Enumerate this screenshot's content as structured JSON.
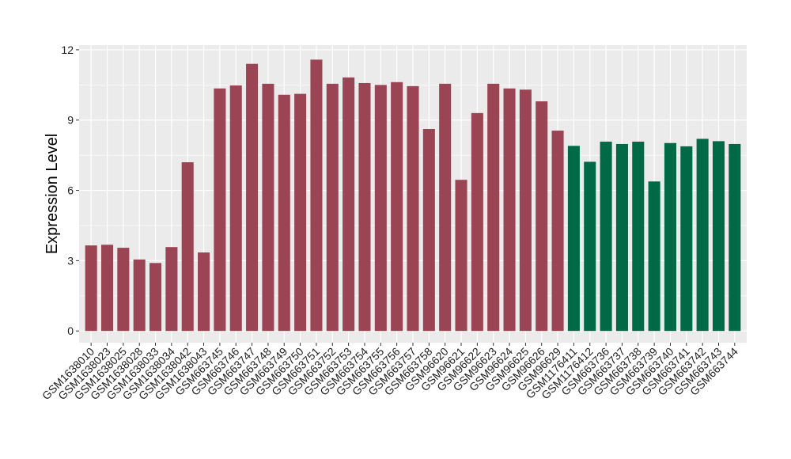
{
  "chart_data": {
    "type": "bar",
    "title": "",
    "xlabel": "",
    "ylabel": "Expression Level",
    "ylim": [
      -0.5,
      12.2
    ],
    "yticks": [
      0,
      3,
      6,
      9,
      12
    ],
    "grid": true,
    "legend": "none",
    "colors": {
      "group1": "#9b4453",
      "group2": "#006a46",
      "panel": "#ebebeb",
      "grid": "#ffffff"
    },
    "categories": [
      "GSM1638010",
      "GSM1638023",
      "GSM1638025",
      "GSM1638028",
      "GSM1638033",
      "GSM1638034",
      "GSM1638042",
      "GSM1638043",
      "GSM663745",
      "GSM663746",
      "GSM663747",
      "GSM663748",
      "GSM663749",
      "GSM663750",
      "GSM663751",
      "GSM663752",
      "GSM663753",
      "GSM663754",
      "GSM663755",
      "GSM663756",
      "GSM663757",
      "GSM663758",
      "GSM96620",
      "GSM96621",
      "GSM96622",
      "GSM96623",
      "GSM96624",
      "GSM96625",
      "GSM96626",
      "GSM96629",
      "GSM1176411",
      "GSM1176412",
      "GSM663736",
      "GSM663737",
      "GSM663738",
      "GSM663739",
      "GSM663740",
      "GSM663741",
      "GSM663742",
      "GSM663743",
      "GSM663744"
    ],
    "values": [
      3.65,
      3.68,
      3.55,
      3.05,
      2.9,
      3.58,
      7.2,
      3.35,
      10.35,
      10.48,
      11.4,
      10.55,
      10.08,
      10.12,
      11.58,
      10.55,
      10.82,
      10.58,
      10.5,
      10.62,
      10.45,
      8.62,
      10.55,
      6.45,
      9.3,
      10.55,
      10.35,
      10.3,
      9.8,
      8.55,
      7.9,
      7.22,
      8.08,
      7.98,
      8.08,
      6.38,
      8.02,
      7.88,
      8.2,
      8.1,
      7.98
    ],
    "groups": [
      1,
      1,
      1,
      1,
      1,
      1,
      1,
      1,
      1,
      1,
      1,
      1,
      1,
      1,
      1,
      1,
      1,
      1,
      1,
      1,
      1,
      1,
      1,
      1,
      1,
      1,
      1,
      1,
      1,
      1,
      2,
      2,
      2,
      2,
      2,
      2,
      2,
      2,
      2,
      2,
      2
    ]
  }
}
